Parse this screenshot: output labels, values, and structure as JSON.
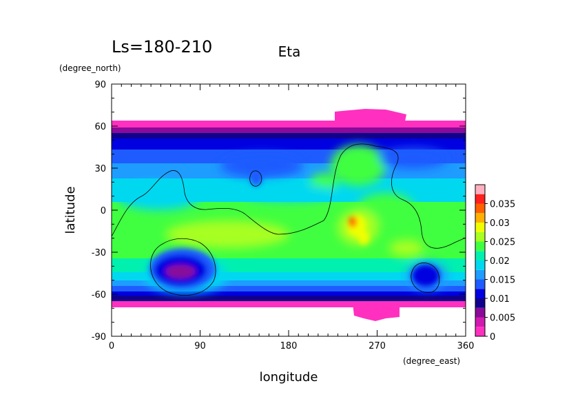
{
  "chart_data": {
    "type": "heatmap",
    "title": "Eta",
    "subtitle": "Ls=180-210",
    "xlabel": "longitude",
    "xunits": "(degree_east)",
    "ylabel": "latitude",
    "yunits": "(degree_north)",
    "xlim": [
      0,
      360
    ],
    "ylim": [
      -90,
      90
    ],
    "xticks": [
      "0",
      "90",
      "180",
      "270",
      "360"
    ],
    "yticks": [
      "90",
      "60",
      "30",
      "0",
      "-30",
      "-60",
      "-90"
    ],
    "colorbar": {
      "ticks": [
        "0",
        "0.005",
        "0.01",
        "0.015",
        "0.02",
        "0.025",
        "0.03",
        "0.035"
      ],
      "levels": [
        0,
        0.0025,
        0.005,
        0.0075,
        0.01,
        0.0125,
        0.015,
        0.0175,
        0.02,
        0.0225,
        0.025,
        0.0275,
        0.03,
        0.0325,
        0.035,
        0.0375
      ],
      "colors": [
        "#ff30c0",
        "#d01ab0",
        "#8a0a9a",
        "#10008c",
        "#0000e0",
        "#1e5cff",
        "#1e9cff",
        "#00d8f0",
        "#00f0b0",
        "#40ff40",
        "#a8ff20",
        "#f0ff00",
        "#ffb000",
        "#ff6000",
        "#ff2020",
        "#ffb0c0"
      ]
    }
  }
}
